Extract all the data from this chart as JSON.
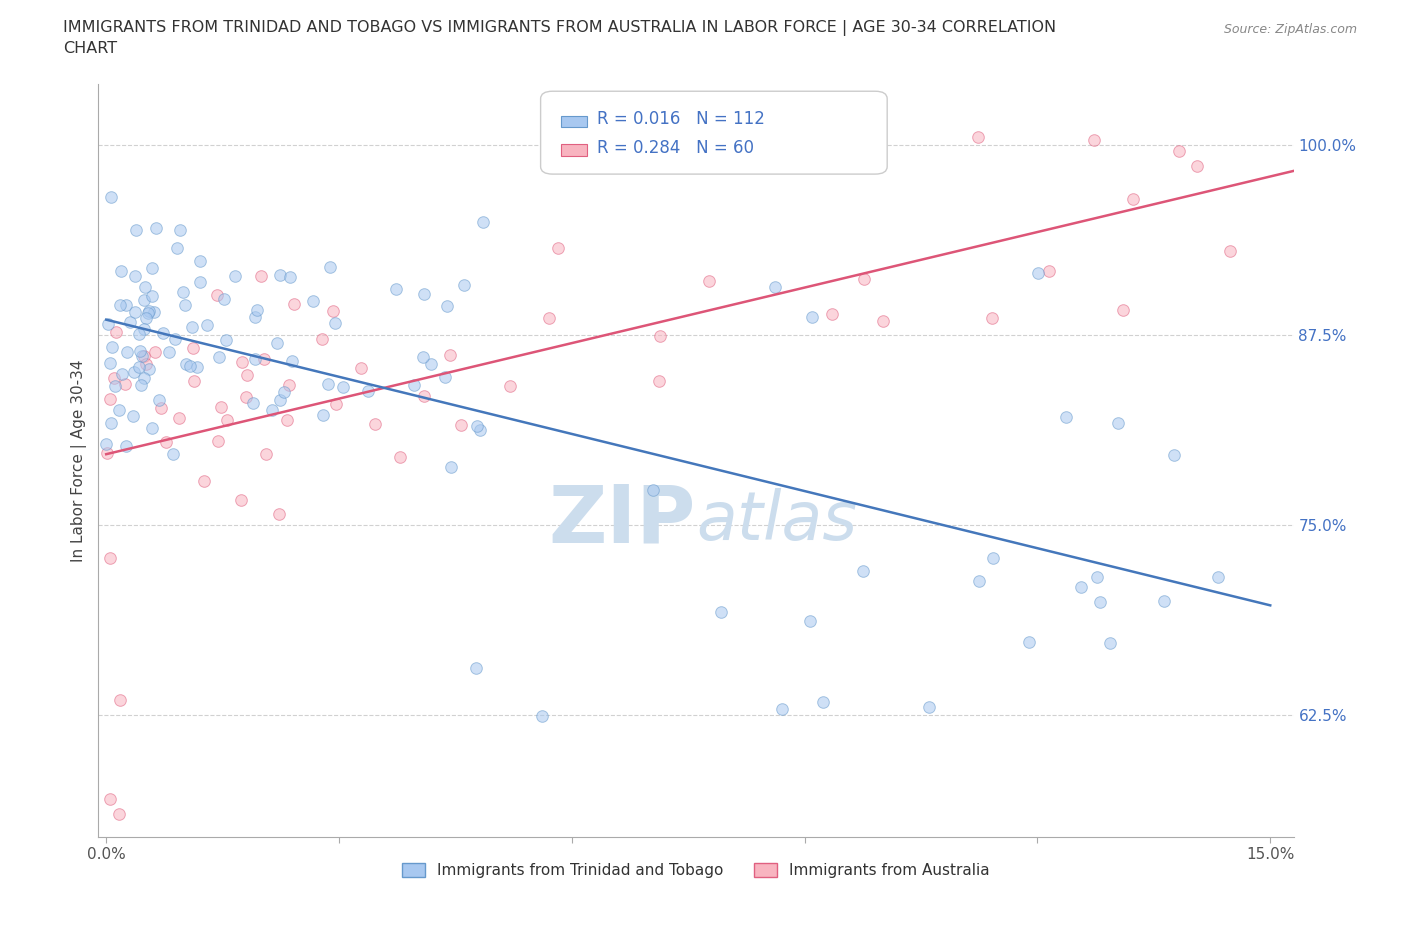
{
  "title_line1": "IMMIGRANTS FROM TRINIDAD AND TOBAGO VS IMMIGRANTS FROM AUSTRALIA IN LABOR FORCE | AGE 30-34 CORRELATION",
  "title_line2": "CHART",
  "source_text": "Source: ZipAtlas.com",
  "ylabel": "In Labor Force | Age 30-34",
  "xlim": [
    -0.001,
    0.153
  ],
  "ylim": [
    0.545,
    1.04
  ],
  "yticks": [
    0.625,
    0.75,
    0.875,
    1.0
  ],
  "yticklabels": [
    "62.5%",
    "75.0%",
    "87.5%",
    "100.0%"
  ],
  "xtick_positions": [
    0.0,
    0.03,
    0.06,
    0.09,
    0.12,
    0.15
  ],
  "xticklabels": [
    "0.0%",
    "",
    "",
    "",
    "",
    "15.0%"
  ],
  "tt_color": "#a8c8f0",
  "tt_edge_color": "#6699cc",
  "au_color": "#f8b4c0",
  "au_edge_color": "#e06080",
  "trend_tt_color": "#4477bb",
  "trend_au_color": "#dd5577",
  "R_tt": 0.016,
  "N_tt": 112,
  "R_au": 0.284,
  "N_au": 60,
  "legend_R_color": "#4472c4",
  "legend_N_color": "#333333",
  "background_color": "#ffffff",
  "grid_color": "#cccccc",
  "watermark_color": "#ccdded",
  "marker_size": 70,
  "alpha": 0.55,
  "trend_lw": 1.8
}
